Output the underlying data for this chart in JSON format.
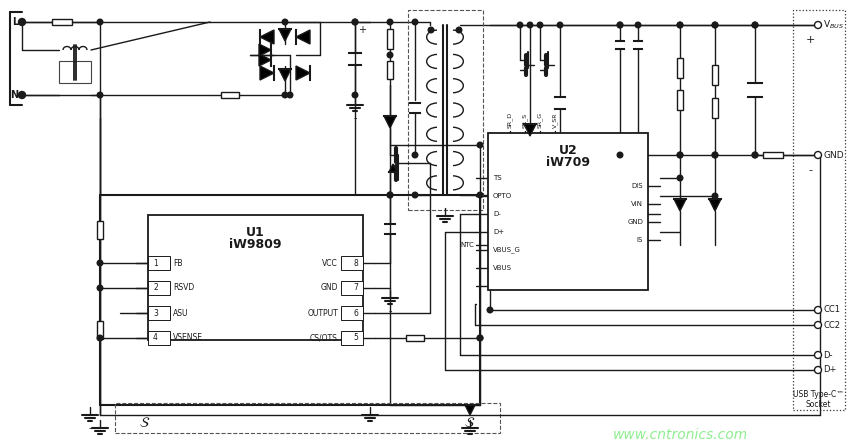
{
  "bg_color": "#ffffff",
  "line_color": "#1a1a1a",
  "text_color": "#1a1a1a",
  "watermark_color": "#90ee90",
  "watermark_text": "www.cntronics.com",
  "fig_width": 8.51,
  "fig_height": 4.46,
  "dpi": 100,
  "u1_label1": "U1",
  "u1_label2": "iW9809",
  "u2_label1": "U2",
  "u2_label2": "iW709",
  "usb_label": "USB Type-C™\nSocket",
  "L_label": "L",
  "N_label": "N"
}
